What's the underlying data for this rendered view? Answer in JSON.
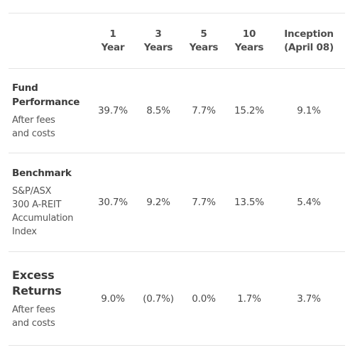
{
  "header": {
    "columns": [
      {
        "line1": "1",
        "line2": "Year"
      },
      {
        "line1": "3",
        "line2": "Years"
      },
      {
        "line1": "5",
        "line2": "Years"
      },
      {
        "line1": "10",
        "line2": "Years"
      },
      {
        "line1": "Inception",
        "line2": "(April 08)"
      }
    ]
  },
  "rows": [
    {
      "title_lines": [
        "Fund",
        "Performance"
      ],
      "sub_lines": [
        "After fees",
        "and costs"
      ],
      "values": [
        "39.7%",
        "8.5%",
        "7.7%",
        "15.2%",
        "9.1%"
      ]
    },
    {
      "title_lines": [
        "Benchmark"
      ],
      "sub_lines": [
        "S&P/ASX",
        "300 A-REIT",
        "Accumulation",
        "Index"
      ],
      "values": [
        "30.7%",
        "9.2%",
        "7.7%",
        "13.5%",
        "5.4%"
      ]
    },
    {
      "title_lines": [
        "Excess",
        "Returns"
      ],
      "sub_lines": [
        "After fees",
        "and costs"
      ],
      "values": [
        "9.0%",
        "(0.7%)",
        "0.0%",
        "1.7%",
        "3.7%"
      ]
    }
  ]
}
